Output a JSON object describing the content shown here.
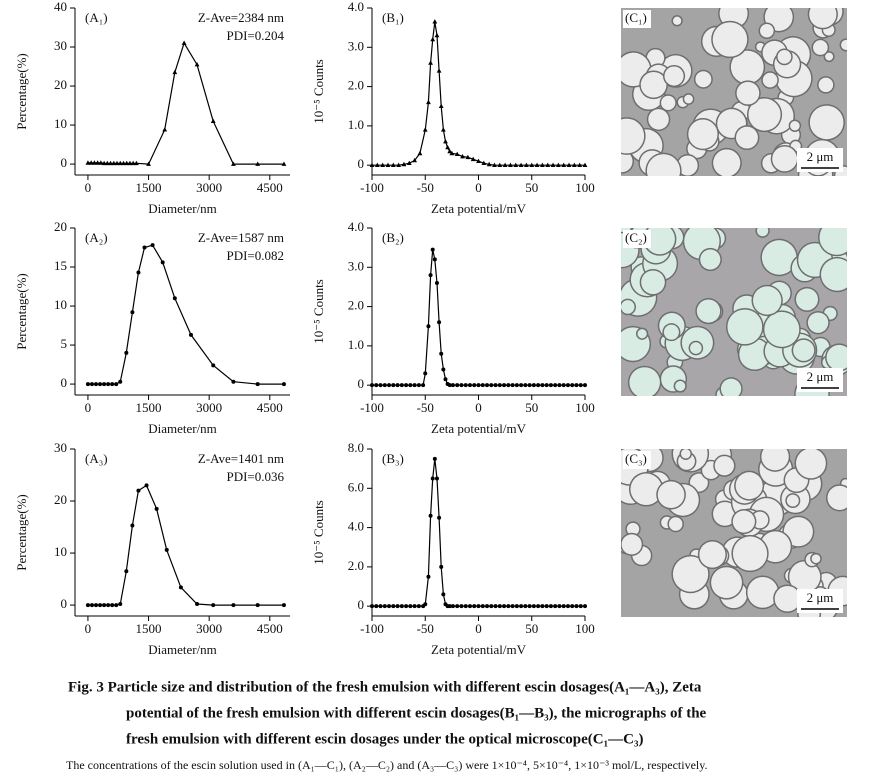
{
  "chart_data": [
    {
      "type": "line",
      "panel_label": "(A₁)",
      "annotations": [
        "Z-Ave=2384 nm",
        "PDI=0.204"
      ],
      "xlabel": "Diameter/nm",
      "ylabel": "Percentage(%)",
      "marker": "triangle",
      "color": "#000000",
      "x": [
        0,
        80,
        160,
        240,
        320,
        400,
        480,
        560,
        640,
        720,
        800,
        880,
        960,
        1040,
        1120,
        1200,
        1500,
        1900,
        2150,
        2380,
        2700,
        3100,
        3600,
        4200,
        4850
      ],
      "values": [
        0.3,
        0.3,
        0.3,
        0.3,
        0.3,
        0.2,
        0.2,
        0.2,
        0.2,
        0.2,
        0.2,
        0.2,
        0.2,
        0.2,
        0.2,
        0.2,
        0,
        8.8,
        23.5,
        31,
        25.5,
        11,
        0,
        0,
        0
      ],
      "xlim": [
        -320,
        5000
      ],
      "ylim": [
        -2.8,
        40
      ],
      "xticks": [
        0,
        1500,
        3000,
        4500
      ],
      "yticks": [
        0,
        10,
        20,
        30,
        40
      ]
    },
    {
      "type": "line",
      "panel_label": "(B₁)",
      "xlabel": "Zeta potential/mV",
      "ylabel": "10⁻⁵ Counts",
      "marker": "triangle",
      "color": "#000000",
      "x": [
        -100,
        -95,
        -90,
        -85,
        -80,
        -75,
        -70,
        -65,
        -60,
        -55,
        -50,
        -47,
        -45,
        -43,
        -41,
        -39,
        -37,
        -35,
        -33,
        -31,
        -29,
        -27,
        -25,
        -20,
        -15,
        -10,
        -5,
        0,
        5,
        10,
        15,
        20,
        25,
        30,
        35,
        40,
        45,
        50,
        55,
        60,
        65,
        70,
        75,
        80,
        85,
        90,
        95,
        100
      ],
      "values": [
        0,
        0,
        0,
        0,
        0,
        0,
        0.02,
        0.05,
        0.12,
        0.3,
        0.9,
        1.6,
        2.6,
        3.2,
        3.65,
        3.3,
        2.4,
        1.5,
        0.9,
        0.6,
        0.45,
        0.35,
        0.3,
        0.28,
        0.22,
        0.2,
        0.15,
        0.1,
        0.05,
        0.02,
        0,
        0,
        0,
        0,
        0,
        0,
        0,
        0,
        0,
        0,
        0,
        0,
        0,
        0,
        0,
        0,
        0,
        0
      ],
      "xlim": [
        -100,
        100
      ],
      "ylim": [
        -0.25,
        4
      ],
      "xticks": [
        -100,
        -50,
        0,
        50,
        100
      ],
      "yticks": [
        0,
        {
          "value": 1,
          "label": "1.0"
        },
        {
          "value": 2,
          "label": "2.0"
        },
        {
          "value": 3,
          "label": "3.0"
        },
        {
          "value": 4,
          "label": "4.0"
        }
      ]
    },
    {
      "type": "line",
      "panel_label": "(A₂)",
      "annotations": [
        "Z-Ave=1587 nm",
        "PDI=0.082"
      ],
      "xlabel": "Diameter/nm",
      "ylabel": "Percentage(%)",
      "marker": "circle",
      "color": "#000000",
      "x": [
        0,
        100,
        200,
        300,
        400,
        500,
        600,
        700,
        800,
        950,
        1100,
        1250,
        1400,
        1600,
        1850,
        2150,
        2550,
        3100,
        3600,
        4200,
        4850
      ],
      "values": [
        0,
        0,
        0,
        0,
        0,
        0,
        0,
        0,
        0.3,
        4,
        9.2,
        14.3,
        17.5,
        17.8,
        15.6,
        11,
        6.3,
        2.4,
        0.3,
        0,
        0
      ],
      "xlim": [
        -320,
        5000
      ],
      "ylim": [
        -1.4,
        20
      ],
      "xticks": [
        0,
        1500,
        3000,
        4500
      ],
      "yticks": [
        0,
        5,
        10,
        15,
        20
      ]
    },
    {
      "type": "line",
      "panel_label": "(B₂)",
      "xlabel": "Zeta potential/mV",
      "ylabel": "10⁻⁵ Counts",
      "marker": "circle",
      "color": "#000000",
      "x": [
        -100,
        -96,
        -92,
        -88,
        -84,
        -80,
        -76,
        -72,
        -68,
        -64,
        -60,
        -56,
        -52,
        -50,
        -47,
        -45,
        -43,
        -41,
        -39,
        -37,
        -35,
        -33,
        -31,
        -29,
        -27,
        -24,
        -20,
        -16,
        -12,
        -8,
        -4,
        0,
        4,
        8,
        12,
        16,
        20,
        24,
        28,
        32,
        36,
        40,
        44,
        48,
        52,
        56,
        60,
        64,
        68,
        72,
        76,
        80,
        84,
        88,
        92,
        96,
        100
      ],
      "values": [
        0,
        0,
        0,
        0,
        0,
        0,
        0,
        0,
        0,
        0,
        0,
        0,
        0,
        0.3,
        1.5,
        2.8,
        3.45,
        3.2,
        2.6,
        1.6,
        0.8,
        0.4,
        0.15,
        0.03,
        0,
        0,
        0,
        0,
        0,
        0,
        0,
        0,
        0,
        0,
        0,
        0,
        0,
        0,
        0,
        0,
        0,
        0,
        0,
        0,
        0,
        0,
        0,
        0,
        0,
        0,
        0,
        0,
        0,
        0,
        0,
        0,
        0
      ],
      "xlim": [
        -100,
        100
      ],
      "ylim": [
        -0.25,
        4
      ],
      "xticks": [
        -100,
        -50,
        0,
        50,
        100
      ],
      "yticks": [
        0,
        {
          "value": 1,
          "label": "1.0"
        },
        {
          "value": 2,
          "label": "2.0"
        },
        {
          "value": 3,
          "label": "3.0"
        },
        {
          "value": 4,
          "label": "4.0"
        }
      ]
    },
    {
      "type": "line",
      "panel_label": "(A₃)",
      "annotations": [
        "Z-Ave=1401 nm",
        "PDI=0.036"
      ],
      "xlabel": "Diameter/nm",
      "ylabel": "Percentage(%)",
      "marker": "circle",
      "color": "#000000",
      "x": [
        0,
        100,
        200,
        300,
        400,
        500,
        600,
        700,
        800,
        950,
        1100,
        1250,
        1450,
        1700,
        1950,
        2300,
        2700,
        3100,
        3600,
        4200,
        4850
      ],
      "values": [
        0,
        0,
        0,
        0,
        0,
        0,
        0,
        0,
        0.2,
        6.5,
        15.3,
        22,
        23,
        18.5,
        10.6,
        3.4,
        0.2,
        0,
        0,
        0,
        0
      ],
      "xlim": [
        -320,
        5000
      ],
      "ylim": [
        -2.1,
        30
      ],
      "xticks": [
        0,
        1500,
        3000,
        4500
      ],
      "yticks": [
        0,
        10,
        20,
        30
      ]
    },
    {
      "type": "line",
      "panel_label": "(B₃)",
      "xlabel": "Zeta potential/mV",
      "ylabel": "10⁻⁵ Counts",
      "marker": "circle",
      "color": "#000000",
      "x": [
        -100,
        -96,
        -92,
        -88,
        -84,
        -80,
        -76,
        -72,
        -68,
        -64,
        -60,
        -56,
        -52,
        -50,
        -47,
        -45,
        -43,
        -41,
        -39,
        -37,
        -35,
        -33,
        -31,
        -29,
        -27,
        -24,
        -20,
        -16,
        -12,
        -8,
        -4,
        0,
        4,
        8,
        12,
        16,
        20,
        24,
        28,
        32,
        36,
        40,
        44,
        48,
        52,
        56,
        60,
        64,
        68,
        72,
        76,
        80,
        84,
        88,
        92,
        96,
        100
      ],
      "values": [
        0,
        0,
        0,
        0,
        0,
        0,
        0,
        0,
        0,
        0,
        0,
        0,
        0,
        0.1,
        1.5,
        4.6,
        6.5,
        7.5,
        6.5,
        4.5,
        2,
        0.6,
        0.1,
        0,
        0,
        0,
        0,
        0,
        0,
        0,
        0,
        0,
        0,
        0,
        0,
        0,
        0,
        0,
        0,
        0,
        0,
        0,
        0,
        0,
        0,
        0,
        0,
        0,
        0,
        0,
        0,
        0,
        0,
        0,
        0,
        0,
        0
      ],
      "xlim": [
        -100,
        100
      ],
      "ylim": [
        -0.5,
        8
      ],
      "xticks": [
        -100,
        -50,
        0,
        50,
        100
      ],
      "yticks": [
        0,
        {
          "value": 2,
          "label": "2.0"
        },
        {
          "value": 4,
          "label": "4.0"
        },
        {
          "value": 6,
          "label": "6.0"
        },
        {
          "value": 8,
          "label": "8.0"
        }
      ]
    }
  ],
  "micrographs": [
    {
      "label": "(C₁)",
      "scale": "2 μm"
    },
    {
      "label": "(C₂)",
      "scale": "2 μm"
    },
    {
      "label": "(C₃)",
      "scale": "2 μm"
    }
  ],
  "caption": {
    "lines": [
      "Fig. 3   Particle size and distribution of the fresh emulsion with different escin dosages(A₁—A₃), Zeta",
      "potential of the fresh emulsion with different escin dosages(B₁—B₃), the micrographs of the",
      "fresh emulsion with different escin dosages under the optical microscope(C₁—C₃)"
    ],
    "note": "The concentrations of the escin solution used in (A₁—C₁), (A₂—C₂) and (A₃—C₃) were 1×10⁻⁴, 5×10⁻⁴, 1×10⁻³ mol/L, respectively."
  }
}
